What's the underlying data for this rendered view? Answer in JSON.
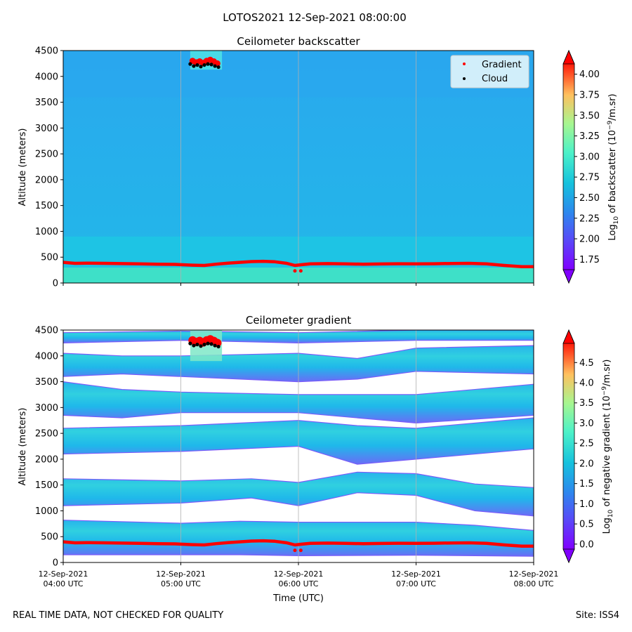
{
  "figure": {
    "title": "LOTOS2021 12-Sep-2021 08:00:00",
    "footer_left": "REAL TIME DATA, NOT CHECKED FOR QUALITY",
    "footer_right": "Site: ISS4"
  },
  "colors": {
    "background_field": "#1bbde6",
    "surface_layer": "#3ee0c8",
    "gradient_marker": "#ff0000",
    "cloud_marker": "#000000",
    "gridline": "#b0b0b0"
  },
  "chart_data": [
    {
      "type": "heatmap",
      "title": "Ceilometer backscatter",
      "ylabel": "Altitude (meters)",
      "xlabel": "",
      "x_ticks": [
        "12-Sep-2021\n04:00 UTC",
        "12-Sep-2021\n05:00 UTC",
        "12-Sep-2021\n06:00 UTC",
        "12-Sep-2021\n07:00 UTC",
        "12-Sep-2021\n08:00 UTC"
      ],
      "x_tick_labels_visible": false,
      "xlim_hours": [
        4,
        8
      ],
      "ylim": [
        0,
        4500
      ],
      "y_ticks": [
        0,
        500,
        1000,
        1500,
        2000,
        2500,
        3000,
        3500,
        4000,
        4500
      ],
      "grid": "vertical",
      "legend": {
        "placement": "top-right",
        "entries": [
          {
            "name": "Gradient",
            "color": "#ff0000"
          },
          {
            "name": "Cloud",
            "color": "#000000"
          }
        ]
      },
      "colorbar": {
        "label": "Log10 of backscatter (10^-9/m.sr)",
        "label_parts": [
          "Log",
          "10",
          " of backscatter (10",
          "−9",
          "/m.sr)"
        ],
        "min": 1.625,
        "max": 4.125,
        "ticks": [
          "1.75",
          "2.00",
          "2.25",
          "2.50",
          "2.75",
          "3.00",
          "3.25",
          "3.50",
          "3.75",
          "4.00"
        ],
        "extend": "both"
      },
      "cloud_patch": {
        "x_hours": [
          5.08,
          5.35
        ],
        "y": [
          4130,
          4500
        ]
      }
    },
    {
      "type": "heatmap",
      "title": "Ceilometer gradient",
      "ylabel": "Altitude (meters)",
      "xlabel": "Time (UTC)",
      "x_ticks": [
        "12-Sep-2021\n04:00 UTC",
        "12-Sep-2021\n05:00 UTC",
        "12-Sep-2021\n06:00 UTC",
        "12-Sep-2021\n07:00 UTC",
        "12-Sep-2021\n08:00 UTC"
      ],
      "x_tick_labels_visible": true,
      "xlim_hours": [
        4,
        8
      ],
      "ylim": [
        0,
        4500
      ],
      "y_ticks": [
        0,
        500,
        1000,
        1500,
        2000,
        2500,
        3000,
        3500,
        4000,
        4500
      ],
      "grid": "vertical",
      "colorbar": {
        "label": "Log10 of negative gradient (10^-9/m.sr)",
        "label_parts": [
          "Log",
          "10",
          " of negative gradient (10",
          "−9",
          "/m.sr)"
        ],
        "min": -0.125,
        "max": 4.975,
        "ticks": [
          "0.0",
          "0.5",
          "1.0",
          "1.5",
          "2.0",
          "2.5",
          "3.0",
          "3.5",
          "4.0",
          "4.5"
        ],
        "extend": "both"
      },
      "bands": [
        {
          "x": [
            4.0,
            5.0,
            5.6,
            6.0,
            6.5,
            7.0,
            7.5,
            8.0
          ],
          "bottom": [
            1100,
            1150,
            1250,
            1100,
            1350,
            1300,
            1000,
            900
          ],
          "top": [
            1620,
            1580,
            1620,
            1550,
            1750,
            1720,
            1520,
            1450
          ]
        },
        {
          "x": [
            4.0,
            5.0,
            6.0,
            6.5,
            7.0,
            8.0
          ],
          "bottom": [
            2100,
            2150,
            2250,
            1900,
            2000,
            2200
          ],
          "top": [
            2600,
            2650,
            2750,
            2650,
            2600,
            2800
          ]
        },
        {
          "x": [
            4.0,
            4.5,
            5.0,
            6.0,
            7.0,
            8.0
          ],
          "bottom": [
            2850,
            2800,
            2900,
            2900,
            2700,
            2850
          ],
          "top": [
            3500,
            3350,
            3300,
            3250,
            3250,
            3450
          ]
        },
        {
          "x": [
            4.0,
            4.5,
            5.0,
            6.0,
            6.5,
            7.0,
            8.0
          ],
          "bottom": [
            3600,
            3650,
            3600,
            3500,
            3550,
            3700,
            3650
          ],
          "top": [
            4050,
            4000,
            4000,
            4050,
            3950,
            4150,
            4200
          ]
        },
        {
          "x": [
            4.0,
            5.0,
            6.0,
            7.0,
            8.0
          ],
          "bottom": [
            4250,
            4300,
            4250,
            4300,
            4300
          ],
          "top": [
            4450,
            4480,
            4450,
            4500,
            4500
          ]
        },
        {
          "x": [
            4.0,
            5.0,
            5.5,
            6.0,
            7.0,
            7.5,
            8.0
          ],
          "bottom": [
            150,
            150,
            150,
            130,
            140,
            130,
            120
          ],
          "top": [
            820,
            760,
            800,
            780,
            780,
            720,
            620
          ]
        }
      ],
      "cloud_patch": {
        "x_hours": [
          5.08,
          5.35
        ],
        "y": [
          3900,
          4500
        ]
      }
    }
  ],
  "series_shared": {
    "gradient": {
      "name": "Gradient",
      "x_hours": [
        4.0,
        4.1,
        4.2,
        4.35,
        4.5,
        4.65,
        4.8,
        4.95,
        5.1,
        5.2,
        5.3,
        5.4,
        5.5,
        5.6,
        5.7,
        5.8,
        5.9,
        5.97,
        6.03,
        6.1,
        6.25,
        6.4,
        6.55,
        6.7,
        6.85,
        7.0,
        7.15,
        7.3,
        7.45,
        7.6,
        7.75,
        7.9,
        8.0
      ],
      "y": [
        400,
        380,
        385,
        380,
        375,
        370,
        365,
        360,
        345,
        340,
        365,
        385,
        400,
        415,
        420,
        410,
        380,
        340,
        355,
        370,
        375,
        370,
        365,
        368,
        372,
        370,
        372,
        378,
        380,
        370,
        340,
        315,
        315
      ],
      "extra_points": [
        {
          "x": 5.97,
          "y": 235
        },
        {
          "x": 6.02,
          "y": 235
        }
      ],
      "cloud_top_x": [
        5.1,
        5.13,
        5.16,
        5.19,
        5.22,
        5.25,
        5.28,
        5.31
      ],
      "cloud_top_y": [
        4300,
        4270,
        4290,
        4260,
        4300,
        4320,
        4290,
        4250
      ]
    },
    "cloud": {
      "name": "Cloud",
      "x_hours": [
        5.08,
        5.11,
        5.14,
        5.17,
        5.2,
        5.23,
        5.26,
        5.29,
        5.32
      ],
      "y": [
        4240,
        4200,
        4220,
        4190,
        4220,
        4240,
        4230,
        4200,
        4180
      ]
    }
  }
}
